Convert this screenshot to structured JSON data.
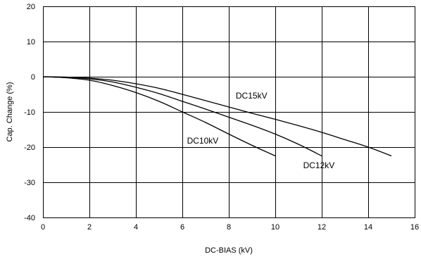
{
  "chart_data": {
    "type": "line",
    "title": "",
    "xlabel": "DC-BIAS (kV)",
    "ylabel": "Cap. Change (%)",
    "xlim": [
      0,
      16
    ],
    "ylim": [
      -40,
      20
    ],
    "x_ticks": [
      0,
      2,
      4,
      6,
      8,
      10,
      12,
      14,
      16
    ],
    "y_ticks": [
      20,
      10,
      0,
      -10,
      -20,
      -30,
      -40
    ],
    "grid": true,
    "legend": "none",
    "line_color": "#000000",
    "series": [
      {
        "name": "DC10kV",
        "x": [
          0,
          1,
          2,
          3,
          4,
          5,
          6,
          7,
          8,
          9,
          10
        ],
        "y": [
          0,
          -0.3,
          -1.0,
          -2.5,
          -4.5,
          -7.0,
          -10.0,
          -13.0,
          -16.3,
          -19.5,
          -22.5
        ]
      },
      {
        "name": "DC12kV",
        "x": [
          0,
          1,
          2,
          3,
          4,
          5,
          6,
          7,
          8,
          9,
          10,
          11,
          12
        ],
        "y": [
          0,
          -0.2,
          -0.6,
          -1.5,
          -3.0,
          -4.8,
          -7.0,
          -9.2,
          -11.5,
          -13.8,
          -16.3,
          -19.2,
          -22.5
        ]
      },
      {
        "name": "DC15kV",
        "x": [
          0,
          1,
          2,
          3,
          4,
          5,
          6,
          7,
          8,
          9,
          10,
          11,
          12,
          13,
          14,
          15
        ],
        "y": [
          0,
          -0.1,
          -0.4,
          -1.0,
          -2.0,
          -3.3,
          -5.0,
          -6.8,
          -8.6,
          -10.4,
          -12.1,
          -13.9,
          -15.8,
          -17.9,
          -20.0,
          -22.5
        ]
      }
    ],
    "series_labels": [
      {
        "text": "DC15kV",
        "x": 8.3,
        "y": -6.2
      },
      {
        "text": "DC10kV",
        "x": 6.2,
        "y": -19.0
      },
      {
        "text": "DC12kV",
        "x": 11.2,
        "y": -26.0
      }
    ]
  }
}
